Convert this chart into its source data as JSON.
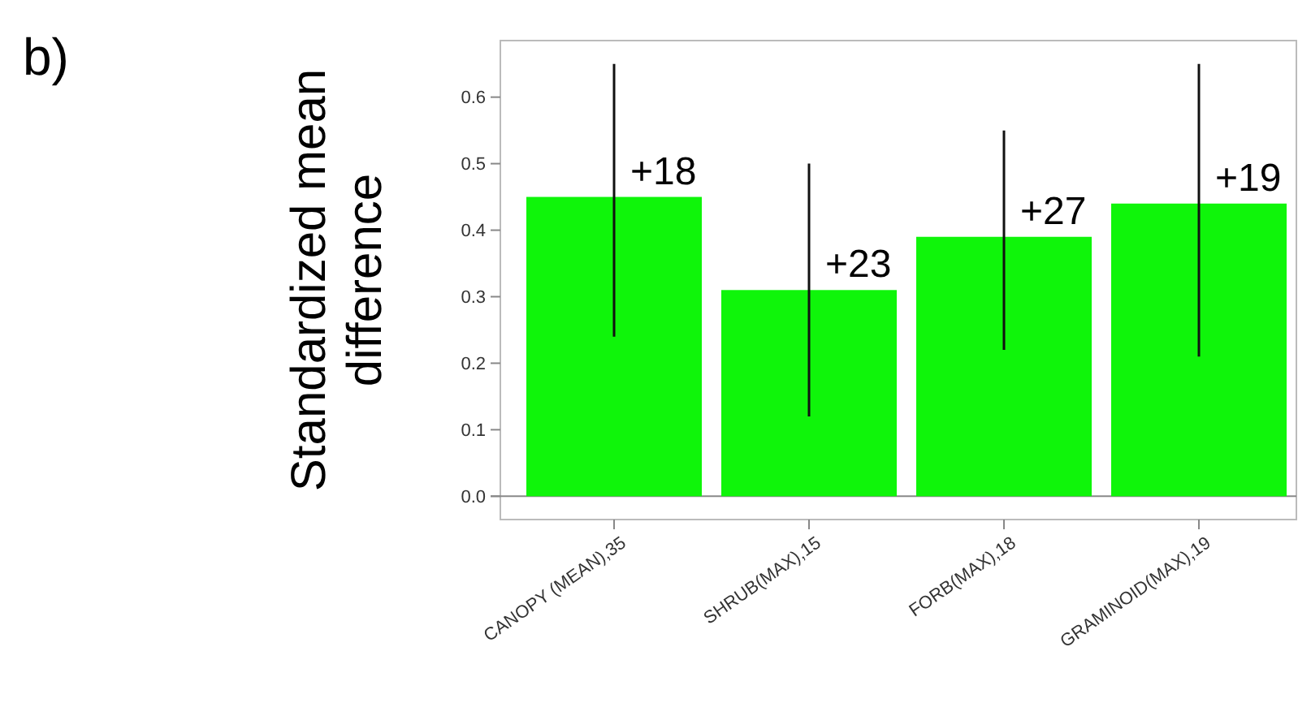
{
  "chart_data": {
    "type": "bar",
    "title": "b)",
    "ylabel": "Standardized mean difference",
    "categories": [
      "CANOPY (MEAN),35",
      "SHRUB(MAX),15",
      "FORB(MAX),18",
      "GRAMINOID(MAX),19"
    ],
    "values": [
      0.45,
      0.31,
      0.39,
      0.44
    ],
    "color": "#0ff50a",
    "errors": [
      [
        0.24,
        0.65
      ],
      [
        0.12,
        0.5
      ],
      [
        0.22,
        0.55
      ],
      [
        0.21,
        0.65
      ]
    ],
    "ylim": [
      -0.035,
      0.685
    ],
    "yticks": [
      {
        "value": 0,
        "label": "0.0"
      },
      0.1,
      0.2,
      0.3,
      0.4,
      0.5,
      0.6
    ],
    "annotations": [
      {
        "text": "+18",
        "x": "CANOPY (MEAN),35",
        "y": 0.45
      },
      {
        "text": "+23",
        "x": "SHRUB(MAX),15",
        "y": 0.31
      },
      {
        "text": "+27",
        "x": "FORB(MAX),18",
        "y": 0.39
      },
      {
        "text": "+19",
        "x": "GRAMINOID(MAX),19",
        "y": 0.44
      }
    ]
  }
}
